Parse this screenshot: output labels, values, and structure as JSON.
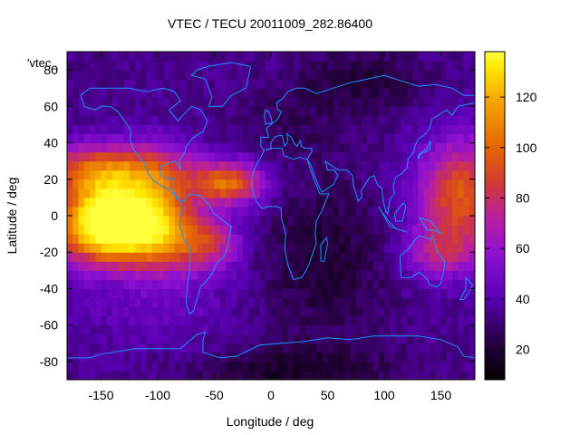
{
  "chart_data": {
    "type": "heatmap",
    "title": "VTEC / TECU 20011009_282.86400",
    "xlabel": "Longitude / deg",
    "ylabel": "Latitude / deg",
    "xlim": [
      -180,
      180
    ],
    "ylim": [
      -90,
      90
    ],
    "x_ticks": [
      -150,
      -100,
      -50,
      0,
      50,
      100,
      150
    ],
    "y_ticks": [
      -80,
      -60,
      -40,
      -20,
      0,
      20,
      40,
      60,
      80
    ],
    "legend_label": "'vtec_",
    "colorbar": {
      "range": [
        8,
        138
      ],
      "ticks": [
        20,
        40,
        60,
        80,
        100,
        120
      ],
      "palette": "black-purple-red-orange-yellow",
      "colors": [
        "#000000",
        "#2a0046",
        "#5a00b4",
        "#8c10d2",
        "#b9209a",
        "#d23a32",
        "#e66a00",
        "#f5a500",
        "#ffe600",
        "#ffff3c"
      ]
    },
    "coastline_color": "#1e90ff",
    "features": [
      {
        "region": "equatorial anomaly, Pacific (lon -180 to -90)",
        "lat_range": [
          -25,
          35
        ],
        "peak_value": 135
      },
      {
        "region": "equatorial anomaly, western Pacific (lon 120 to 180)",
        "lat_range": [
          -10,
          35
        ],
        "peak_value": 95
      },
      {
        "region": "Atlantic / South America crest (lon -60 to -10)",
        "lat_range": [
          5,
          25
        ],
        "peak_value": 100
      },
      {
        "region": "night side, Eurasia / Indian Ocean (lon 0 to 120)",
        "lat_range": [
          -50,
          60
        ],
        "peak_value": 20
      }
    ]
  }
}
